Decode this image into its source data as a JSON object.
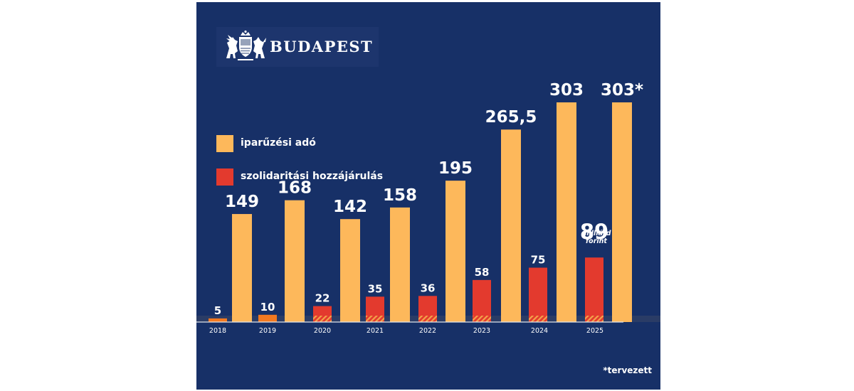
{
  "brand": {
    "name": "BUDAPEST"
  },
  "legend": [
    {
      "label": "iparűzési adó",
      "color": "#fdb85b"
    },
    {
      "label": "szolidaritási hozzájárulás",
      "color": "#e33a2e"
    }
  ],
  "footnote": "*tervezett",
  "unit_label": {
    "line1": "milliárd",
    "line2": "forint"
  },
  "colors": {
    "background": "#173067",
    "iparuzesi": "#fdb85b",
    "szolidaritasi": "#e33a2e",
    "szolidaritasi_early": "#f37920",
    "hatch": "#f3a24a"
  },
  "chart_data": {
    "type": "bar",
    "categories": [
      "2018",
      "2019",
      "2020",
      "2021",
      "2022",
      "2023",
      "2024",
      "2025"
    ],
    "series": [
      {
        "name": "szolidaritási hozzájárulás",
        "values": [
          5,
          10,
          22,
          35,
          36,
          58,
          75,
          89
        ],
        "labels": [
          "5",
          "10",
          "22",
          "35",
          "36",
          "58",
          "75",
          "89"
        ]
      },
      {
        "name": "iparűzési adó",
        "values": [
          149,
          168,
          142,
          158,
          195,
          265.5,
          303,
          303
        ],
        "labels": [
          "149",
          "168",
          "142",
          "158",
          "195",
          "265,5",
          "303",
          "303*"
        ]
      }
    ],
    "ylim": [
      0,
      303
    ],
    "grid": false,
    "legend_position": "top-left"
  }
}
